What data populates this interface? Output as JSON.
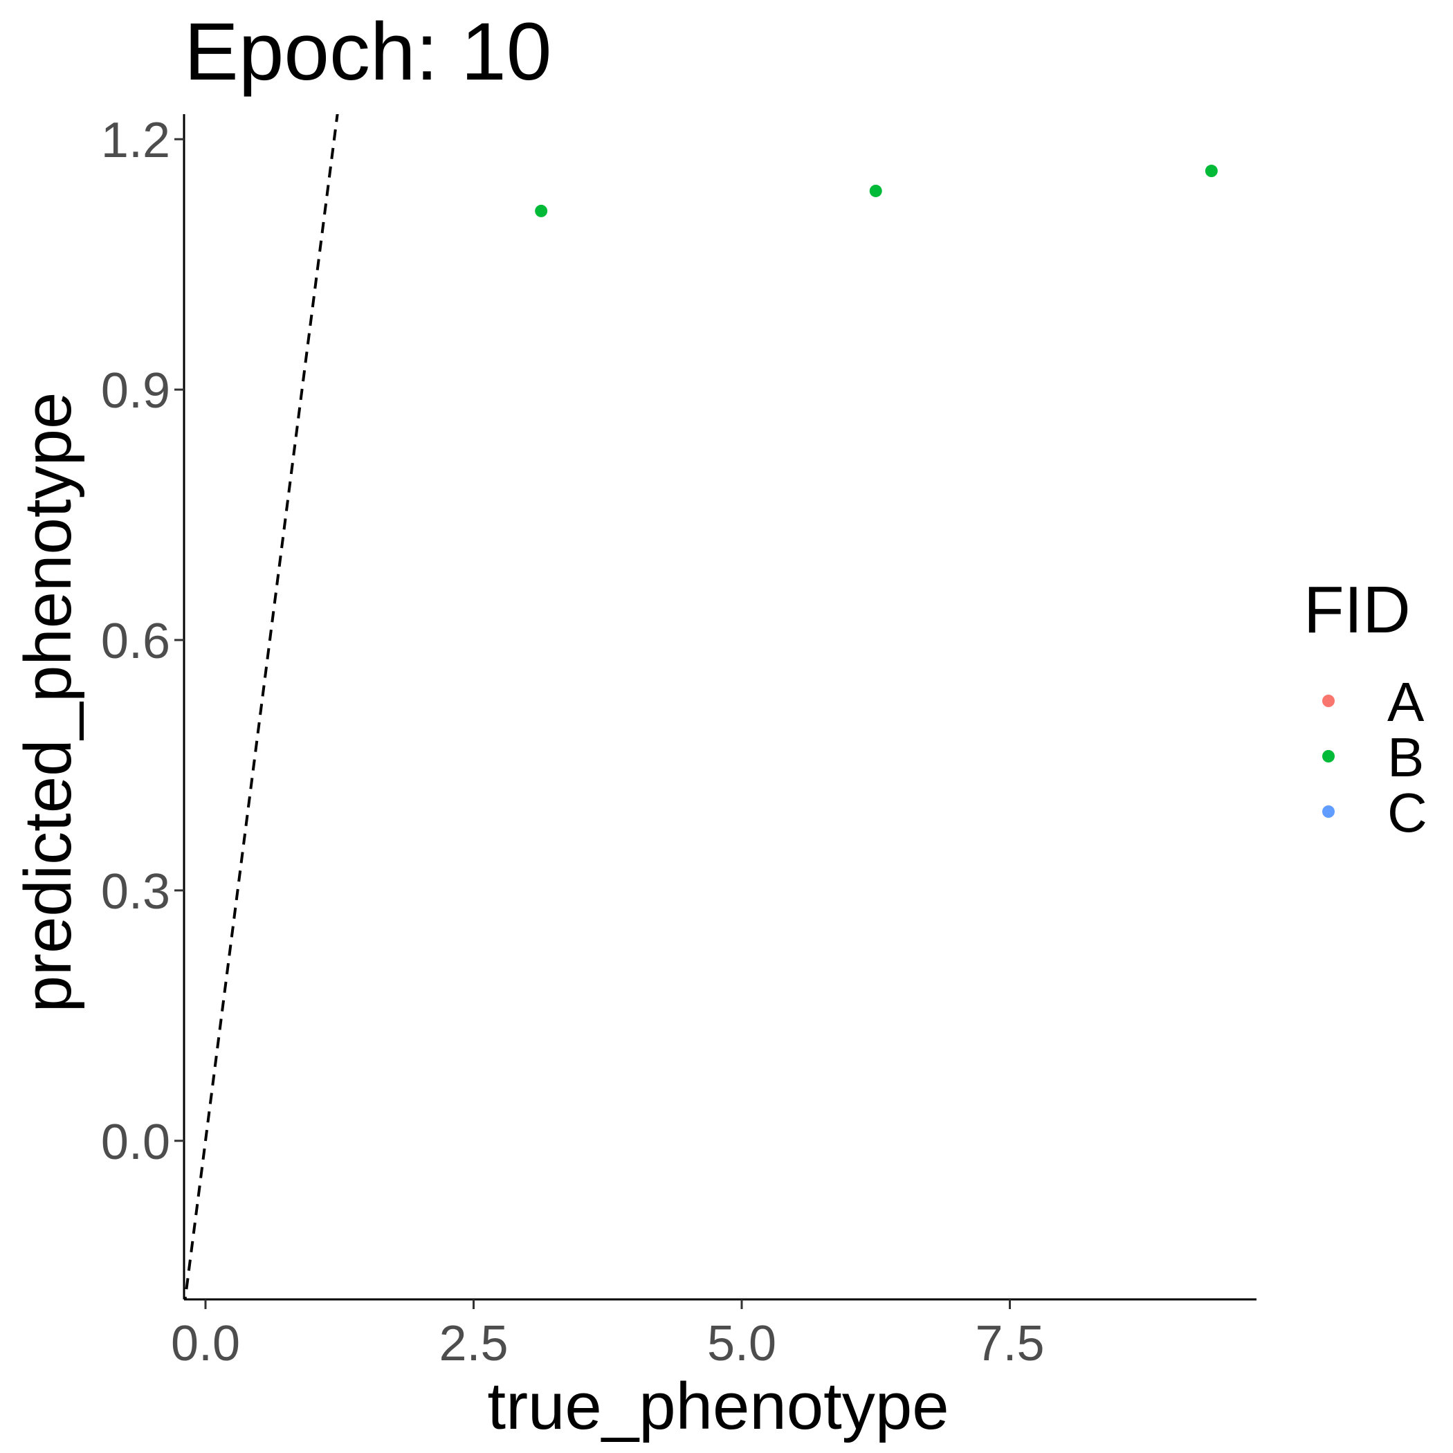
{
  "chart_data": {
    "type": "scatter",
    "title": "Epoch: 10",
    "xlabel": "true_phenotype",
    "ylabel": "predicted_phenotype",
    "xlim": [
      -0.2,
      9.8
    ],
    "ylim": [
      -0.19,
      1.23
    ],
    "x_ticks": [
      0.0,
      2.5,
      5.0,
      7.5
    ],
    "x_tick_labels": [
      "0.0",
      "2.5",
      "5.0",
      "7.5"
    ],
    "y_ticks": [
      0.0,
      0.3,
      0.6,
      0.9,
      1.2
    ],
    "y_tick_labels": [
      "0.0",
      "0.3",
      "0.6",
      "0.9",
      "1.2"
    ],
    "grid": false,
    "legend": {
      "title": "FID",
      "placement": "right",
      "entries": [
        {
          "label": "A",
          "color": "#F8766D"
        },
        {
          "label": "B",
          "color": "#00BA38"
        },
        {
          "label": "C",
          "color": "#619CFF"
        }
      ]
    },
    "series": [
      {
        "name": "B",
        "color": "#00BA38",
        "points": [
          {
            "x": 3.13,
            "y": 1.114
          },
          {
            "x": 6.25,
            "y": 1.138
          },
          {
            "x": 9.38,
            "y": 1.162
          }
        ]
      }
    ],
    "reference_line": {
      "slope": 1,
      "intercept": 0,
      "style": "dashed",
      "color": "#000000"
    }
  }
}
